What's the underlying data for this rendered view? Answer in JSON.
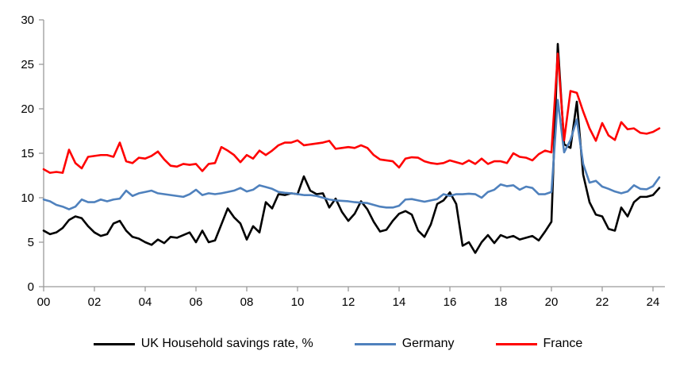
{
  "chart_data": {
    "type": "line",
    "title": "",
    "xlabel": "",
    "ylabel": "",
    "ylim": [
      0,
      30
    ],
    "y_ticks": [
      0,
      5,
      10,
      15,
      20,
      25,
      30
    ],
    "x_tick_labels": [
      "00",
      "02",
      "04",
      "06",
      "08",
      "10",
      "12",
      "14",
      "16",
      "18",
      "20",
      "22",
      "24"
    ],
    "x_start_year": 2000,
    "x_frequency": "quarterly",
    "grid": false,
    "legend_position": "bottom-center",
    "axis_color": "#9b9b9b",
    "series": [
      {
        "name": "UK Household savings rate, %",
        "color": "#000000",
        "values": [
          6.3,
          5.9,
          6.1,
          6.6,
          7.5,
          7.9,
          7.7,
          6.8,
          6.1,
          5.7,
          5.9,
          7.1,
          7.4,
          6.3,
          5.6,
          5.4,
          5.0,
          4.7,
          5.3,
          4.9,
          5.6,
          5.5,
          5.8,
          6.1,
          5.0,
          6.3,
          5.0,
          5.2,
          7.0,
          8.8,
          7.8,
          7.1,
          5.3,
          6.8,
          6.1,
          9.5,
          8.8,
          10.4,
          10.3,
          10.5,
          10.4,
          12.4,
          10.8,
          10.4,
          10.5,
          8.9,
          9.9,
          8.4,
          7.4,
          8.2,
          9.6,
          8.7,
          7.3,
          6.2,
          6.4,
          7.4,
          8.2,
          8.5,
          8.1,
          6.3,
          5.6,
          7.0,
          9.3,
          9.7,
          10.6,
          9.3,
          4.6,
          5.0,
          3.8,
          5.0,
          5.8,
          4.9,
          5.8,
          5.5,
          5.7,
          5.3,
          5.5,
          5.7,
          5.2,
          6.2,
          7.3,
          27.3,
          16.0,
          15.6,
          20.8,
          12.6,
          9.5,
          8.1,
          7.9,
          6.5,
          6.3,
          8.9,
          7.9,
          9.5,
          10.1,
          10.1,
          10.3,
          11.1
        ]
      },
      {
        "name": "Germany",
        "color": "#4F81BD",
        "values": [
          9.8,
          9.6,
          9.2,
          9.0,
          8.7,
          9.0,
          9.8,
          9.5,
          9.5,
          9.8,
          9.6,
          9.8,
          9.9,
          10.8,
          10.2,
          10.5,
          10.65,
          10.8,
          10.5,
          10.4,
          10.3,
          10.2,
          10.1,
          10.4,
          10.9,
          10.3,
          10.5,
          10.4,
          10.5,
          10.65,
          10.8,
          11.1,
          10.7,
          10.9,
          11.4,
          11.2,
          11.0,
          10.65,
          10.55,
          10.5,
          10.4,
          10.3,
          10.3,
          10.2,
          10.0,
          9.8,
          9.7,
          9.65,
          9.6,
          9.5,
          9.45,
          9.4,
          9.2,
          9.0,
          8.9,
          8.9,
          9.1,
          9.8,
          9.85,
          9.7,
          9.55,
          9.7,
          9.85,
          10.4,
          10.2,
          10.4,
          10.4,
          10.45,
          10.4,
          10.0,
          10.65,
          10.9,
          11.5,
          11.3,
          11.4,
          10.9,
          11.25,
          11.1,
          10.4,
          10.4,
          10.65,
          21.0,
          15.1,
          16.5,
          18.8,
          13.8,
          11.7,
          11.9,
          11.25,
          11.0,
          10.7,
          10.5,
          10.7,
          11.4,
          11.0,
          10.95,
          11.3,
          12.3
        ]
      },
      {
        "name": "France",
        "color": "#FF0000",
        "values": [
          13.2,
          12.8,
          12.9,
          12.8,
          15.4,
          13.9,
          13.3,
          14.6,
          14.7,
          14.8,
          14.8,
          14.6,
          16.2,
          14.1,
          13.9,
          14.5,
          14.4,
          14.7,
          15.2,
          14.3,
          13.6,
          13.5,
          13.8,
          13.7,
          13.8,
          13.0,
          13.8,
          13.9,
          15.7,
          15.3,
          14.8,
          14.0,
          14.8,
          14.4,
          15.3,
          14.8,
          15.3,
          15.9,
          16.2,
          16.2,
          16.45,
          15.9,
          16.0,
          16.1,
          16.2,
          16.4,
          15.5,
          15.6,
          15.7,
          15.6,
          15.9,
          15.6,
          14.8,
          14.3,
          14.2,
          14.1,
          13.4,
          14.4,
          14.55,
          14.5,
          14.1,
          13.9,
          13.8,
          13.9,
          14.2,
          14.0,
          13.8,
          14.2,
          13.8,
          14.4,
          13.8,
          14.1,
          14.1,
          13.9,
          15.0,
          14.6,
          14.5,
          14.2,
          14.9,
          15.3,
          15.1,
          26.2,
          16.45,
          22.0,
          21.8,
          19.7,
          17.8,
          16.4,
          18.4,
          17.0,
          16.5,
          18.5,
          17.7,
          17.8,
          17.3,
          17.2,
          17.4,
          17.8
        ]
      }
    ]
  },
  "legend": {
    "items": [
      {
        "label": "UK Household savings rate, %"
      },
      {
        "label": "Germany"
      },
      {
        "label": "France"
      }
    ]
  }
}
